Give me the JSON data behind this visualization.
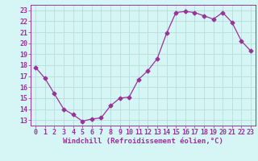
{
  "x": [
    0,
    1,
    2,
    3,
    4,
    5,
    6,
    7,
    8,
    9,
    10,
    11,
    12,
    13,
    14,
    15,
    16,
    17,
    18,
    19,
    20,
    21,
    22,
    23
  ],
  "y": [
    17.8,
    16.8,
    15.4,
    14.0,
    13.5,
    12.9,
    13.1,
    13.2,
    14.3,
    15.0,
    15.1,
    16.7,
    17.5,
    18.6,
    20.9,
    22.8,
    22.9,
    22.8,
    22.5,
    22.2,
    22.8,
    21.9,
    20.2,
    19.3
  ],
  "line_color": "#993399",
  "marker": "D",
  "marker_size": 2.5,
  "background_color": "#d6f5f5",
  "grid_color": "#b8dede",
  "xlabel": "Windchill (Refroidissement éolien,°C)",
  "xlabel_fontsize": 6.5,
  "xlabel_color": "#993399",
  "tick_color": "#993399",
  "tick_fontsize": 6.0,
  "ylim": [
    12.5,
    23.5
  ],
  "xlim": [
    -0.5,
    23.5
  ],
  "yticks": [
    13,
    14,
    15,
    16,
    17,
    18,
    19,
    20,
    21,
    22,
    23
  ],
  "xticks": [
    0,
    1,
    2,
    3,
    4,
    5,
    6,
    7,
    8,
    9,
    10,
    11,
    12,
    13,
    14,
    15,
    16,
    17,
    18,
    19,
    20,
    21,
    22,
    23
  ]
}
